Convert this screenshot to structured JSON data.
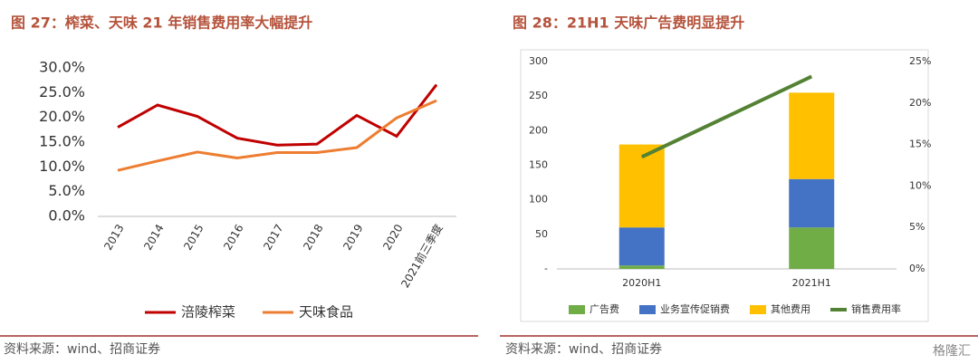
{
  "chart_data": [
    {
      "type": "line",
      "title": "图 27：榨菜、天味 21 年销售费用率大幅提升",
      "source": "资料来源：wind、招商证券",
      "categories": [
        "2013",
        "2014",
        "2015",
        "2016",
        "2017",
        "2018",
        "2019",
        "2020",
        "2021前三季度"
      ],
      "series": [
        {
          "name": "涪陵榨菜",
          "color": "#c00000",
          "values": [
            18.0,
            22.5,
            20.2,
            15.8,
            14.4,
            14.6,
            20.4,
            16.2,
            26.6
          ]
        },
        {
          "name": "天味食品",
          "color": "#ed7d31",
          "values": [
            9.3,
            11.2,
            13.0,
            11.8,
            12.9,
            12.9,
            13.9,
            19.9,
            23.4
          ]
        }
      ],
      "ylim": [
        0,
        30
      ],
      "yticks": [
        {
          "value": 0,
          "label": "0.0%"
        },
        {
          "value": 5,
          "label": "5.0%"
        },
        {
          "value": 10,
          "label": "10.0%"
        },
        {
          "value": 15,
          "label": "15.0%"
        },
        {
          "value": 20,
          "label": "20.0%"
        },
        {
          "value": 25,
          "label": "25.0%"
        },
        {
          "value": 30,
          "label": "30.0%"
        }
      ],
      "legend": "bottom"
    },
    {
      "type": "bar",
      "stacked": true,
      "title": "图 28：21H1 天味广告费明显提升",
      "source": "资料来源：wind、招商证券",
      "watermark": "格隆汇",
      "categories": [
        "2020H1",
        "2021H1"
      ],
      "series": [
        {
          "name": "广告费",
          "color": "#70ad47",
          "values": [
            5,
            60
          ]
        },
        {
          "name": "业务宣传促销费",
          "color": "#4472c4",
          "values": [
            55,
            70
          ]
        },
        {
          "name": "其他费用",
          "color": "#ffc000",
          "values": [
            120,
            125
          ]
        },
        {
          "name": "销售费用率",
          "color": "#548235",
          "axis": "y2",
          "values": [
            13.5,
            23.2
          ]
        }
      ],
      "ylim": [
        0,
        300
      ],
      "yticks": [
        {
          "value": 0,
          "label": "-"
        },
        50,
        100,
        150,
        200,
        250,
        300
      ],
      "y2lim": [
        0,
        25
      ],
      "y2ticks": [
        {
          "value": 0,
          "label": "0%"
        },
        {
          "value": 5,
          "label": "5%"
        },
        {
          "value": 10,
          "label": "10%"
        },
        {
          "value": 15,
          "label": "15%"
        },
        {
          "value": 20,
          "label": "20%"
        },
        {
          "value": 25,
          "label": "25%"
        }
      ],
      "legend": "bottom"
    }
  ]
}
